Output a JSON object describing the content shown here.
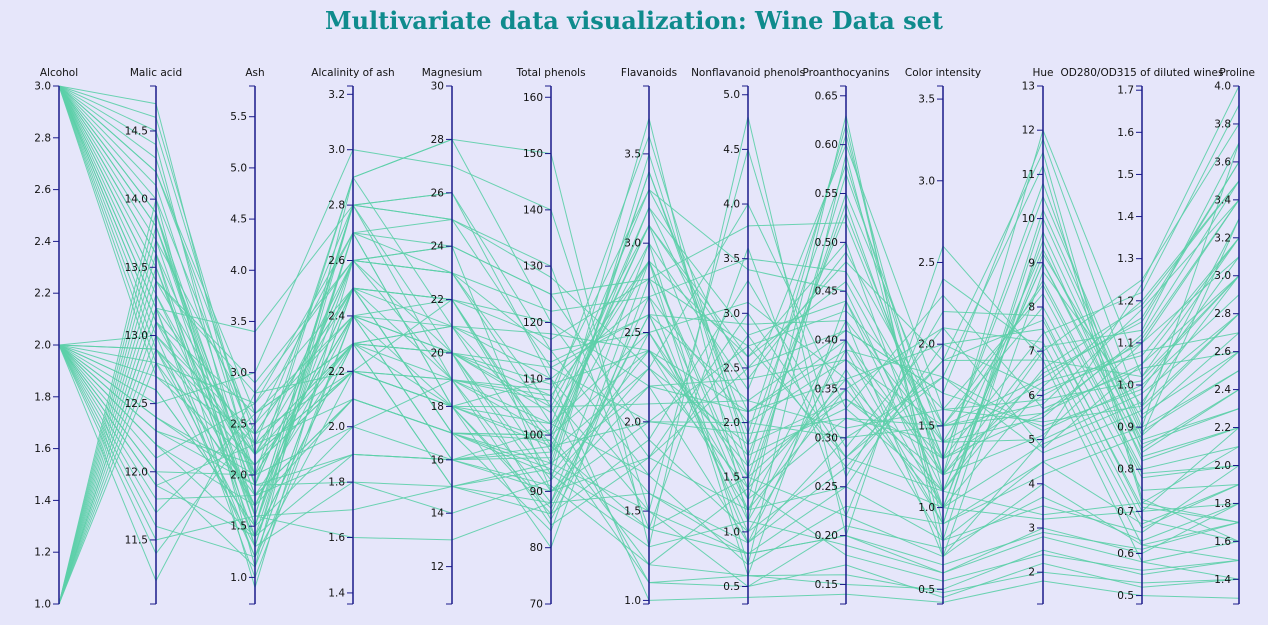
{
  "title": "Multivariate data visualization: Wine Data set",
  "colors": {
    "background": "#e6e6fa",
    "line": "#5ccfa9",
    "axis": "#1a1a8a",
    "title": "#0f8b8d"
  },
  "chart_data": {
    "type": "parallel_coordinates",
    "title": "Multivariate data visualization: Wine Data set",
    "axes": [
      {
        "name": "Alcohol",
        "min": 1.0,
        "max": 3.0,
        "ticks": [
          "1.0",
          "1.2",
          "1.4",
          "1.6",
          "1.8",
          "2.0",
          "2.2",
          "2.4",
          "2.6",
          "2.8",
          "3.0"
        ]
      },
      {
        "name": "Malic acid",
        "min": 11.03,
        "max": 14.83,
        "ticks": [
          "11.5",
          "12.0",
          "12.5",
          "13.0",
          "13.5",
          "14.0",
          "14.5"
        ]
      },
      {
        "name": "Ash",
        "min": 0.74,
        "max": 5.8,
        "ticks": [
          "1.0",
          "1.5",
          "2.0",
          "2.5",
          "3.0",
          "3.5",
          "4.0",
          "4.5",
          "5.0",
          "5.5"
        ]
      },
      {
        "name": "Alcalinity of ash",
        "min": 1.36,
        "max": 3.23,
        "ticks": [
          "1.4",
          "1.6",
          "1.8",
          "2.0",
          "2.2",
          "2.4",
          "2.6",
          "2.8",
          "3.0",
          "3.2"
        ]
      },
      {
        "name": "Magnesium",
        "min": 10.6,
        "max": 30.0,
        "ticks": [
          "12",
          "14",
          "16",
          "18",
          "20",
          "22",
          "24",
          "26",
          "28",
          "30"
        ]
      },
      {
        "name": "Total phenols",
        "min": 70,
        "max": 162,
        "ticks": [
          "70",
          "80",
          "90",
          "100",
          "110",
          "120",
          "130",
          "140",
          "150",
          "160"
        ]
      },
      {
        "name": "Flavanoids",
        "min": 0.98,
        "max": 3.88,
        "ticks": [
          "1.0",
          "1.5",
          "2.0",
          "2.5",
          "3.0",
          "3.5"
        ]
      },
      {
        "name": "Nonflavanoid phenols",
        "min": 0.34,
        "max": 5.08,
        "ticks": [
          "0.5",
          "1.0",
          "1.5",
          "2.0",
          "2.5",
          "3.0",
          "3.5",
          "4.0",
          "4.5",
          "5.0"
        ]
      },
      {
        "name": "Proanthocyanins",
        "min": 0.13,
        "max": 0.66,
        "ticks": [
          "0.15",
          "0.20",
          "0.25",
          "0.30",
          "0.35",
          "0.40",
          "0.45",
          "0.50",
          "0.55",
          "0.60",
          "0.65"
        ]
      },
      {
        "name": "Color intensity",
        "min": 0.41,
        "max": 3.58,
        "ticks": [
          "0.5",
          "1.0",
          "1.5",
          "2.0",
          "2.5",
          "3.0",
          "3.5"
        ]
      },
      {
        "name": "Hue",
        "min": 1.28,
        "max": 13.0,
        "ticks": [
          "2",
          "3",
          "4",
          "5",
          "6",
          "7",
          "8",
          "9",
          "10",
          "11",
          "12",
          "13"
        ]
      },
      {
        "name": "OD280/OD315 of diluted wines",
        "min": 0.48,
        "max": 1.71,
        "ticks": [
          "0.5",
          "0.6",
          "0.7",
          "0.8",
          "0.9",
          "1.0",
          "1.1",
          "1.2",
          "1.3",
          "1.4",
          "1.5",
          "1.6",
          "1.7"
        ]
      },
      {
        "name": "Proline",
        "min": 1.27,
        "max": 4.0,
        "ticks": [
          "1.4",
          "1.6",
          "1.8",
          "2.0",
          "2.2",
          "2.4",
          "2.6",
          "2.8",
          "3.0",
          "3.2",
          "3.4",
          "3.6",
          "3.8",
          "4.0"
        ]
      }
    ],
    "records": [
      [
        3.0,
        13.2,
        2.3,
        2.1,
        17,
        100,
        3.2,
        2.1,
        0.4,
        1.2,
        5.1,
        1.1,
        3.4
      ],
      [
        3.0,
        13.8,
        1.8,
        1.9,
        16,
        98,
        2.9,
        1.4,
        0.55,
        1.5,
        5.6,
        1.05,
        3.2
      ],
      [
        3.0,
        14.2,
        2.4,
        2.2,
        18,
        105,
        3.1,
        2.6,
        0.5,
        1.0,
        6.2,
        1.2,
        3.5
      ],
      [
        3.0,
        13.6,
        2.0,
        2.4,
        20,
        112,
        2.6,
        2.9,
        0.42,
        1.4,
        5.0,
        0.98,
        2.8
      ],
      [
        3.0,
        14.4,
        1.6,
        1.7,
        15,
        95,
        3.4,
        1.8,
        0.58,
        1.2,
        6.5,
        1.15,
        3.6
      ],
      [
        3.0,
        13.1,
        2.6,
        2.3,
        21,
        118,
        2.4,
        1.2,
        0.35,
        2.1,
        4.8,
        1.05,
        3.0
      ],
      [
        3.0,
        13.9,
        1.5,
        2.0,
        16,
        101,
        3.0,
        2.3,
        0.6,
        1.6,
        5.4,
        0.95,
        3.3
      ],
      [
        3.0,
        14.6,
        2.2,
        2.5,
        19,
        108,
        3.3,
        3.4,
        0.45,
        1.1,
        7.0,
        1.25,
        3.8
      ],
      [
        3.0,
        12.9,
        2.1,
        2.2,
        22,
        120,
        2.2,
        0.9,
        0.3,
        1.8,
        5.2,
        1.0,
        2.9
      ],
      [
        3.0,
        13.4,
        2.9,
        2.6,
        24,
        125,
        2.8,
        3.8,
        0.52,
        1.3,
        6.0,
        1.1,
        3.1
      ],
      [
        3.0,
        14.1,
        1.9,
        1.8,
        14,
        92,
        3.5,
        1.6,
        0.62,
        0.8,
        4.5,
        0.9,
        3.7
      ],
      [
        3.0,
        13.7,
        2.5,
        2.4,
        18,
        110,
        2.7,
        2.0,
        0.38,
        1.5,
        5.8,
        1.18,
        3.4
      ],
      [
        3.0,
        13.3,
        1.7,
        2.1,
        17,
        99,
        3.1,
        2.5,
        0.48,
        1.9,
        6.8,
        1.02,
        3.2
      ],
      [
        3.0,
        14.0,
        2.3,
        2.3,
        20,
        104,
        2.9,
        1.3,
        0.57,
        1.4,
        5.5,
        1.12,
        3.5
      ],
      [
        3.0,
        13.5,
        1.4,
        1.9,
        16,
        97,
        3.2,
        2.8,
        0.44,
        1.0,
        4.9,
        0.96,
        3.0
      ],
      [
        3.0,
        12.8,
        2.7,
        2.7,
        23,
        115,
        2.5,
        3.1,
        0.36,
        2.0,
        6.1,
        1.08,
        2.7
      ],
      [
        3.0,
        14.3,
        2.0,
        2.0,
        19,
        106,
        3.6,
        1.7,
        0.53,
        1.3,
        7.4,
        1.22,
        3.9
      ],
      [
        3.0,
        13.0,
        2.4,
        2.5,
        21,
        113,
        2.6,
        2.2,
        0.41,
        1.7,
        5.3,
        0.99,
        3.1
      ],
      [
        3.0,
        13.8,
        1.6,
        1.6,
        13,
        88,
        3.0,
        0.7,
        0.59,
        0.9,
        4.2,
        0.88,
        3.3
      ],
      [
        3.0,
        14.5,
        2.2,
        2.2,
        18,
        102,
        3.3,
        2.4,
        0.49,
        1.5,
        6.4,
        1.16,
        3.6
      ],
      [
        3.0,
        13.2,
        3.4,
        2.8,
        25,
        128,
        2.3,
        4.0,
        0.33,
        2.3,
        5.7,
        1.04,
        2.6
      ],
      [
        3.0,
        13.6,
        1.3,
        1.8,
        15,
        94,
        3.4,
        1.9,
        0.61,
        1.1,
        6.6,
        1.19,
        3.5
      ],
      [
        3.0,
        14.2,
        2.6,
        2.4,
        22,
        117,
        2.8,
        2.7,
        0.43,
        1.6,
        5.9,
        1.01,
        3.0
      ],
      [
        3.0,
        13.9,
        1.8,
        2.1,
        17,
        100,
        3.1,
        1.5,
        0.54,
        1.2,
        7.1,
        1.13,
        3.7
      ],
      [
        3.0,
        12.7,
        2.1,
        2.3,
        20,
        109,
        2.4,
        2.1,
        0.39,
        1.8,
        4.7,
        0.94,
        2.8
      ],
      [
        3.0,
        13.4,
        2.8,
        2.6,
        23,
        122,
        2.7,
        3.5,
        0.47,
        1.4,
        6.3,
        1.07,
        3.2
      ],
      [
        3.0,
        14.7,
        1.9,
        1.9,
        16,
        96,
        3.7,
        1.1,
        0.63,
        0.7,
        5.0,
        1.24,
        4.0
      ],
      [
        3.0,
        13.1,
        2.2,
        2.2,
        19,
        107,
        2.9,
        2.6,
        0.46,
        1.3,
        5.6,
        1.11,
        3.4
      ],
      [
        2.0,
        12.3,
        1.9,
        2.6,
        24,
        90,
        2.0,
        2.0,
        0.3,
        1.5,
        8.0,
        0.75,
        1.9
      ],
      [
        2.0,
        11.9,
        2.3,
        2.3,
        20,
        85,
        2.5,
        1.5,
        0.35,
        1.0,
        9.5,
        0.82,
        2.2
      ],
      [
        2.0,
        12.6,
        1.5,
        2.8,
        26,
        110,
        1.6,
        0.8,
        0.25,
        2.0,
        7.5,
        0.68,
        1.6
      ],
      [
        2.0,
        12.1,
        2.7,
        2.5,
        22,
        95,
        2.2,
        2.4,
        0.38,
        1.3,
        10.5,
        0.9,
        2.5
      ],
      [
        2.0,
        11.6,
        1.2,
        2.2,
        18,
        80,
        2.8,
        1.2,
        0.42,
        0.7,
        8.8,
        0.95,
        2.8
      ],
      [
        2.0,
        12.4,
        2.0,
        2.9,
        28,
        120,
        1.8,
        3.0,
        0.28,
        1.8,
        11.2,
        0.72,
        1.7
      ],
      [
        2.0,
        12.9,
        1.7,
        2.4,
        21,
        100,
        2.4,
        1.7,
        0.33,
        1.1,
        9.0,
        0.85,
        2.4
      ],
      [
        2.0,
        11.4,
        2.5,
        2.7,
        25,
        130,
        1.4,
        3.6,
        0.22,
        2.4,
        7.0,
        0.62,
        1.5
      ],
      [
        2.0,
        12.2,
        1.4,
        2.3,
        19,
        88,
        2.6,
        1.0,
        0.37,
        0.9,
        10.0,
        0.88,
        2.6
      ],
      [
        2.0,
        13.0,
        2.2,
        2.6,
        23,
        105,
        2.1,
        2.2,
        0.31,
        1.6,
        8.3,
        0.78,
        2.0
      ],
      [
        2.0,
        11.8,
        1.8,
        2.1,
        17,
        83,
        2.9,
        0.6,
        0.44,
        1.2,
        12.0,
        1.02,
        3.0
      ],
      [
        2.0,
        12.5,
        3.0,
        3.0,
        27,
        140,
        1.5,
        4.5,
        0.26,
        2.2,
        7.8,
        0.7,
        1.8
      ],
      [
        2.0,
        12.0,
        1.1,
        2.4,
        20,
        92,
        2.3,
        1.4,
        0.36,
        0.8,
        9.7,
        0.86,
        2.3
      ],
      [
        2.0,
        12.7,
        2.4,
        2.5,
        22,
        98,
        2.0,
        1.9,
        0.32,
        1.4,
        8.6,
        0.8,
        2.1
      ],
      [
        2.0,
        11.5,
        1.6,
        2.8,
        26,
        115,
        1.7,
        2.8,
        0.27,
        1.9,
        11.5,
        0.73,
        1.6
      ],
      [
        2.0,
        12.3,
        2.1,
        2.2,
        18,
        86,
        2.7,
        0.9,
        0.4,
        1.0,
        9.2,
        0.92,
        2.7
      ],
      [
        2.0,
        12.8,
        1.3,
        2.7,
        24,
        125,
        1.9,
        3.3,
        0.29,
        2.1,
        7.2,
        0.66,
        1.9
      ],
      [
        2.0,
        11.7,
        2.6,
        2.3,
        21,
        93,
        2.4,
        1.6,
        0.34,
        1.3,
        10.8,
        0.84,
        2.4
      ],
      [
        2.0,
        12.4,
        1.9,
        2.9,
        28,
        150,
        1.3,
        4.8,
        0.2,
        2.6,
        6.8,
        0.58,
        1.4
      ],
      [
        2.0,
        12.0,
        2.0,
        2.4,
        20,
        90,
        2.2,
        2.1,
        0.36,
        1.1,
        9.0,
        0.83,
        2.2
      ],
      [
        2.0,
        12.6,
        1.5,
        2.6,
        23,
        102,
        2.5,
        1.3,
        0.32,
        1.5,
        8.5,
        0.79,
        2.0
      ],
      [
        2.0,
        11.2,
        2.8,
        2.2,
        19,
        84,
        1.8,
        2.5,
        0.41,
        1.7,
        11.8,
        0.93,
        2.6
      ],
      [
        2.0,
        12.2,
        1.7,
        2.5,
        22,
        97,
        2.3,
        1.8,
        0.34,
        1.2,
        9.3,
        0.87,
        2.3
      ],
      [
        2.0,
        12.9,
        2.3,
        2.8,
        25,
        112,
        2.0,
        2.7,
        0.28,
        1.9,
        7.7,
        0.71,
        1.7
      ],
      [
        2.0,
        11.9,
        1.4,
        2.3,
        18,
        87,
        2.6,
        1.1,
        0.39,
        0.9,
        10.2,
        0.89,
        2.5
      ],
      [
        1.0,
        13.0,
        1.2,
        2.5,
        17,
        95,
        1.5,
        0.8,
        0.2,
        0.6,
        3.0,
        0.6,
        1.8
      ],
      [
        1.0,
        13.5,
        1.6,
        2.8,
        19,
        100,
        1.2,
        0.6,
        0.15,
        0.5,
        2.5,
        0.55,
        1.5
      ],
      [
        1.0,
        13.2,
        1.0,
        2.4,
        16,
        90,
        1.8,
        1.2,
        0.25,
        0.8,
        3.5,
        0.65,
        2.0
      ],
      [
        1.0,
        13.8,
        1.9,
        2.6,
        20,
        105,
        1.1,
        0.5,
        0.17,
        0.45,
        2.2,
        0.52,
        1.4
      ],
      [
        1.0,
        12.9,
        1.4,
        2.7,
        18,
        98,
        1.4,
        1.5,
        0.22,
        0.7,
        4.0,
        0.62,
        1.7
      ],
      [
        1.0,
        13.4,
        2.2,
        2.3,
        15,
        88,
        1.6,
        0.9,
        0.27,
        1.0,
        3.2,
        0.7,
        2.2
      ],
      [
        1.0,
        14.0,
        1.1,
        2.9,
        21,
        110,
        1.0,
        0.4,
        0.14,
        0.42,
        1.8,
        0.5,
        1.3
      ],
      [
        1.0,
        13.1,
        1.7,
        2.5,
        17,
        93,
        1.3,
        1.1,
        0.19,
        0.6,
        2.8,
        0.58,
        1.6
      ],
      [
        1.0,
        13.6,
        0.9,
        2.6,
        19,
        102,
        1.7,
        0.7,
        0.23,
        0.9,
        4.5,
        0.67,
        1.9
      ],
      [
        1.0,
        13.3,
        2.0,
        2.4,
        16,
        91,
        1.2,
        1.4,
        0.18,
        0.55,
        2.4,
        0.56,
        1.5
      ],
      [
        1.0,
        13.9,
        1.3,
        2.8,
        20,
        107,
        1.5,
        0.5,
        0.21,
        0.75,
        3.7,
        0.63,
        1.8
      ],
      [
        1.0,
        12.8,
        1.8,
        2.3,
        15,
        86,
        1.9,
        1.0,
        0.28,
        1.1,
        3.3,
        0.72,
        2.1
      ],
      [
        1.0,
        13.7,
        1.5,
        2.7,
        18,
        99,
        1.1,
        0.6,
        0.16,
        0.48,
        2.0,
        0.53,
        1.4
      ],
      [
        1.0,
        13.2,
        1.2,
        2.5,
        17,
        94,
        1.4,
        0.8,
        0.2,
        0.65,
        2.9,
        0.61,
        1.7
      ]
    ]
  }
}
